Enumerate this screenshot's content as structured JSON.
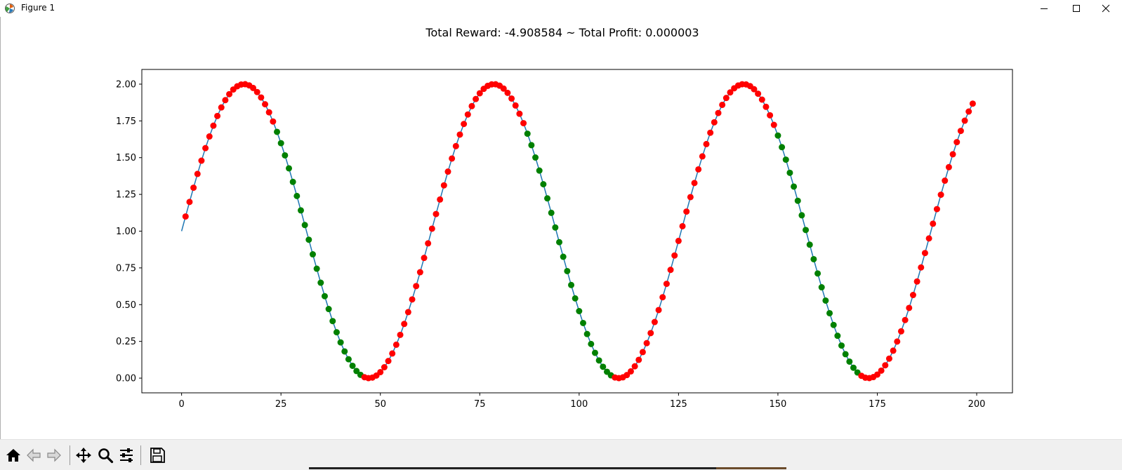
{
  "window": {
    "title": "Figure 1"
  },
  "chart_data": {
    "type": "line",
    "title": "Total Reward: -4.908584 ~ Total Profit: 0.000003",
    "xlabel": "",
    "ylabel": "",
    "xlim": [
      -10,
      209
    ],
    "ylim": [
      -0.1,
      2.1
    ],
    "x_ticks": [
      0,
      25,
      50,
      75,
      100,
      125,
      150,
      175,
      200
    ],
    "x_tick_labels": [
      "0",
      "25",
      "50",
      "75",
      "100",
      "125",
      "150",
      "175",
      "200"
    ],
    "y_ticks": [
      0.0,
      0.25,
      0.5,
      0.75,
      1.0,
      1.25,
      1.5,
      1.75,
      2.0
    ],
    "y_tick_labels": [
      "0.00",
      "0.25",
      "0.50",
      "0.75",
      "1.00",
      "1.25",
      "1.50",
      "1.75",
      "2.00"
    ],
    "grid": false,
    "line": {
      "color": "#1f77b4",
      "x_start": 0,
      "x_end": 199,
      "formula": "y = 1 + sin(x / 10)"
    },
    "markers": {
      "x_start": 1,
      "x_end": 199,
      "colors": {
        "buy": "#ff0000",
        "sell": "#008000"
      },
      "sell_ranges": [
        [
          24,
          45
        ],
        [
          87,
          108
        ],
        [
          150,
          170
        ]
      ]
    }
  },
  "toolbar": {
    "buttons": [
      "home-icon",
      "back-arrow-icon",
      "forward-arrow-icon",
      "pan-icon",
      "zoom-icon",
      "configure-subplots-icon",
      "save-icon"
    ]
  }
}
